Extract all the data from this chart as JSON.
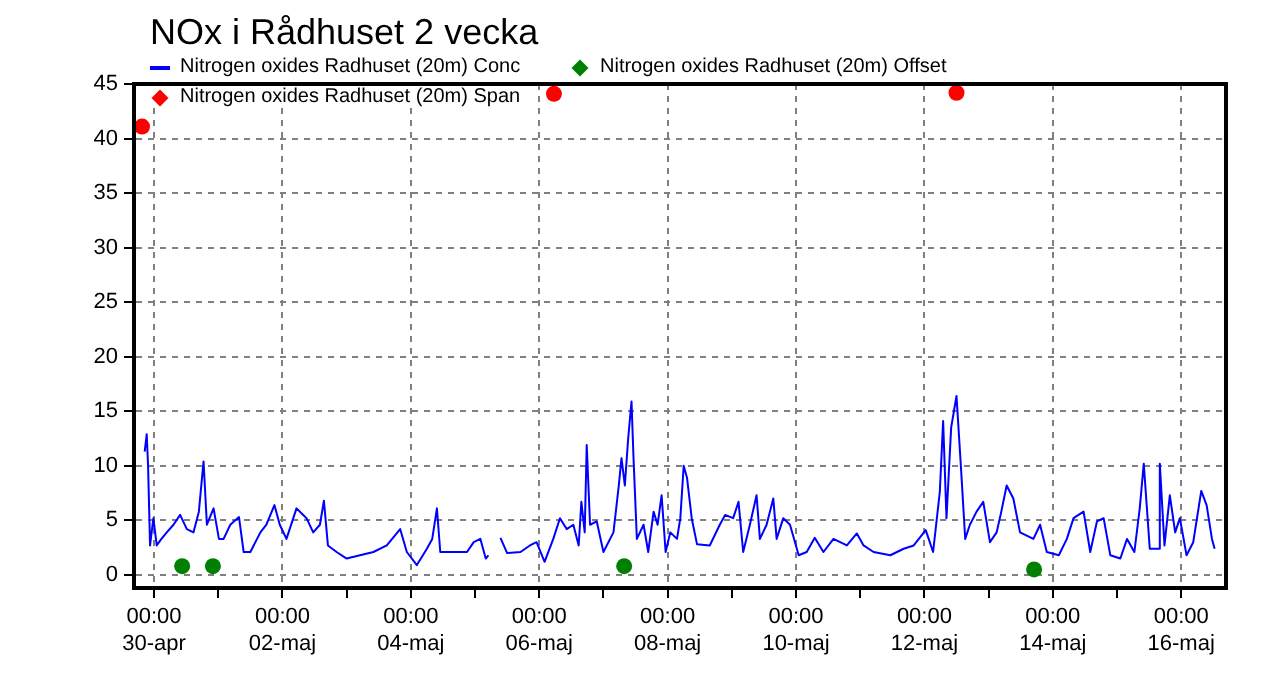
{
  "chart_data": {
    "type": "line",
    "title": "NOx i Rådhuset 2 vecka",
    "legend": "top left",
    "grid": true,
    "xlim": [
      "--04-29T16:30",
      "--05-16T16:45"
    ],
    "xticks": [
      {
        "value": "--04-30T00:00",
        "label": "00:00\n30-apr"
      },
      {
        "value": "--05-01T00:00",
        "label": null
      },
      {
        "value": "--05-02T00:00",
        "label": "00:00\n02-maj"
      },
      {
        "value": "--05-03T00:00",
        "label": null
      },
      {
        "value": "--05-04T00:00",
        "label": "00:00\n04-maj"
      },
      {
        "value": "--05-05T00:00",
        "label": null
      },
      {
        "value": "--05-06T00:00",
        "label": "00:00\n06-maj"
      },
      {
        "value": "--05-07T00:00",
        "label": null
      },
      {
        "value": "--05-08T00:00",
        "label": "00:00\n08-maj"
      },
      {
        "value": "--05-09T00:00",
        "label": null
      },
      {
        "value": "--05-10T00:00",
        "label": "00:00\n10-maj"
      },
      {
        "value": "--05-11T00:00",
        "label": null
      },
      {
        "value": "--05-12T00:00",
        "label": "00:00\n12-maj"
      },
      {
        "value": "--05-13T00:00",
        "label": null
      },
      {
        "value": "--05-14T00:00",
        "label": "00:00\n14-maj"
      },
      {
        "value": "--05-15T00:00",
        "label": null
      },
      {
        "value": "--05-16T00:00",
        "label": "00:00\n16-maj"
      }
    ],
    "ylim": [
      -1.2,
      45
    ],
    "yticks": [
      0,
      5,
      10,
      15,
      20,
      25,
      30,
      35,
      40,
      45
    ],
    "series": [
      {
        "name": "Nitrogen oxides Radhuset (20m) Conc",
        "color": "#0000ff",
        "marker": "none",
        "line_style": "solid",
        "x": [
          "--04-29T20:30",
          "--04-29T21:15",
          "--04-29T21:45",
          "--04-29T22:30",
          "--04-29T23:45",
          "--04-30T01:00",
          "--04-30T02:45",
          "--04-30T04:45",
          "--04-30T07:15",
          "--04-30T09:45",
          "--04-30T12:15",
          "--04-30T14:45",
          "--04-30T16:45",
          "--04-30T18:30",
          "--04-30T19:45",
          "--04-30T22:15",
          "--05-01T00:15",
          "--05-01T02:00",
          "--05-01T04:30",
          "--05-01T07:45",
          "--05-01T09:30",
          "--05-01T12:00",
          "--05-01T15:45",
          "--05-01T18:00",
          "--05-01T21:00",
          "--05-01T23:00",
          "--05-02T01:30",
          "--05-02T05:15",
          "--05-02T09:00",
          "--05-02T11:30",
          "--05-02T14:00",
          "--05-02T15:30",
          "--05-02T17:00",
          "--05-02T20:15",
          "--05-03T00:00",
          "--05-03T05:00",
          "--05-03T10:00",
          "--05-03T15:00",
          "--05-03T20:00",
          "--05-03T22:30",
          "--05-04T02:15",
          "--05-04T06:00",
          "--05-04T08:00",
          "--05-04T09:45",
          "--05-04T11:00",
          "--05-04T16:00",
          "--05-04T21:00",
          "--05-04T23:30",
          "--05-05T02:00",
          "--05-05T04:00",
          "--05-05T05:00",
          "--05-05T06:45",
          "--05-05T09:30",
          "--05-05T12:00",
          "--05-05T17:00",
          "--05-05T20:30",
          "--05-05T23:00",
          "--05-06T02:00",
          "--05-06T05:15",
          "--05-06T07:45",
          "--05-06T10:15",
          "--05-06T12:45",
          "--05-06T14:45",
          "--05-06T15:45",
          "--05-06T17:00",
          "--05-06T17:45",
          "--05-06T19:00",
          "--05-06T21:30",
          "--05-07T00:00",
          "--05-07T03:45",
          "--05-07T05:45",
          "--05-07T06:45",
          "--05-07T08:00",
          "--05-07T09:15",
          "--05-07T10:30",
          "--05-07T11:15",
          "--05-07T12:30",
          "--05-07T15:00",
          "--05-07T16:45",
          "--05-07T18:45",
          "--05-07T20:15",
          "--05-07T21:45",
          "--05-07T23:15",
          "--05-08T01:00",
          "--05-08T03:30",
          "--05-08T04:45",
          "--05-08T06:00",
          "--05-08T07:15",
          "--05-08T09:00",
          "--05-08T11:00",
          "--05-08T15:45",
          "--05-08T19:30",
          "--05-08T21:30",
          "--05-09T00:30",
          "--05-09T02:30",
          "--05-09T04:15",
          "--05-09T06:45",
          "--05-09T09:15",
          "--05-09T10:30",
          "--05-09T13:00",
          "--05-09T15:30",
          "--05-09T16:45",
          "--05-09T19:15",
          "--05-09T21:45",
          "--05-10T01:00",
          "--05-10T04:00",
          "--05-10T07:00",
          "--05-10T10:15",
          "--05-10T14:00",
          "--05-10T19:00",
          "--05-10T22:45",
          "--05-11T01:15",
          "--05-11T05:00",
          "--05-11T11:15",
          "--05-11T16:15",
          "--05-11T20:00",
          "--05-12T00:30",
          "--05-12T03:15",
          "--05-12T05:45",
          "--05-12T07:00",
          "--05-12T08:15",
          "--05-12T10:00",
          "--05-12T12:00",
          "--05-12T13:45",
          "--05-12T15:15",
          "--05-12T17:00",
          "--05-12T19:30",
          "--05-12T22:00",
          "--05-13T00:30",
          "--05-13T03:00",
          "--05-13T04:45",
          "--05-13T06:45",
          "--05-13T09:15",
          "--05-13T11:45",
          "--05-13T16:45",
          "--05-13T19:15",
          "--05-13T21:45",
          "--05-14T02:15",
          "--05-14T05:15",
          "--05-14T07:45",
          "--05-14T11:30",
          "--05-14T14:00",
          "--05-14T16:30",
          "--05-14T19:00",
          "--05-14T21:30",
          "--05-15T01:15",
          "--05-15T03:45",
          "--05-15T06:30",
          "--05-15T08:30",
          "--05-15T10:00",
          "--05-15T12:15",
          "--05-15T15:30",
          "--05-15T16:00",
          "--05-15T17:45",
          "--05-15T19:45",
          "--05-15T21:45",
          "--05-15T23:30",
          "--05-16T02:00",
          "--05-16T04:30",
          "--05-16T07:30",
          "--05-16T09:30",
          "--05-16T11:30",
          "--05-16T12:30"
        ],
        "values": [
          11.3,
          12.9,
          10.1,
          2.7,
          5.2,
          2.7,
          3.3,
          3.9,
          4.6,
          5.5,
          4.2,
          3.9,
          5.8,
          10.4,
          4.6,
          6.1,
          3.3,
          3.3,
          4.6,
          5.3,
          2.1,
          2.1,
          3.9,
          4.6,
          6.4,
          4.6,
          3.3,
          6.1,
          5.2,
          3.9,
          4.6,
          6.8,
          2.7,
          2.1,
          1.5,
          1.8,
          2.1,
          2.7,
          4.2,
          2.1,
          0.9,
          2.4,
          3.3,
          6.1,
          2.1,
          2.1,
          2.1,
          3.0,
          3.3,
          1.5,
          1.8,
          null,
          3.4,
          2.0,
          2.1,
          2.7,
          3.0,
          1.2,
          3.3,
          5.2,
          4.2,
          4.6,
          2.7,
          6.7,
          3.9,
          11.9,
          4.6,
          4.9,
          2.1,
          3.9,
          8.2,
          10.7,
          8.2,
          12.5,
          15.9,
          10.7,
          3.3,
          4.6,
          2.1,
          5.8,
          4.6,
          7.3,
          2.1,
          3.9,
          3.3,
          5.2,
          10.0,
          8.9,
          5.2,
          2.8,
          2.7,
          4.6,
          5.5,
          5.2,
          6.7,
          2.1,
          4.6,
          7.3,
          3.3,
          4.6,
          7.0,
          3.3,
          5.2,
          4.6,
          1.8,
          2.1,
          3.4,
          2.1,
          3.3,
          2.7,
          3.8,
          2.7,
          2.1,
          1.8,
          2.4,
          2.7,
          4.1,
          2.1,
          7.6,
          14.1,
          5.2,
          13.5,
          16.4,
          9.5,
          3.3,
          4.6,
          5.8,
          6.7,
          3.0,
          3.9,
          5.8,
          8.2,
          7.0,
          3.9,
          3.3,
          4.6,
          2.1,
          1.8,
          3.3,
          5.2,
          5.8,
          2.1,
          4.9,
          5.2,
          1.8,
          1.5,
          3.3,
          2.1,
          6.1,
          10.2,
          2.4,
          2.4,
          10.2,
          2.7,
          7.3,
          3.9,
          5.2,
          1.8,
          3.0,
          7.7,
          6.4,
          3.3,
          2.4
        ]
      },
      {
        "name": "Nitrogen oxides Radhuset (20m) Offset",
        "type": "scatter",
        "color": "#008000",
        "marker": "circle",
        "x": [
          "--04-30T10:30",
          "--04-30T22:00",
          "--05-07T07:45",
          "--05-13T17:00"
        ],
        "values": [
          0.8,
          0.8,
          0.8,
          0.5
        ]
      },
      {
        "name": "Nitrogen oxides Radhuset (20m) Span",
        "type": "scatter",
        "color": "#ff0000",
        "marker": "circle",
        "x": [
          "--04-29T19:30",
          "--05-06T05:30",
          "--05-12T12:00"
        ],
        "values": [
          41.1,
          44.1,
          44.2
        ]
      }
    ]
  }
}
